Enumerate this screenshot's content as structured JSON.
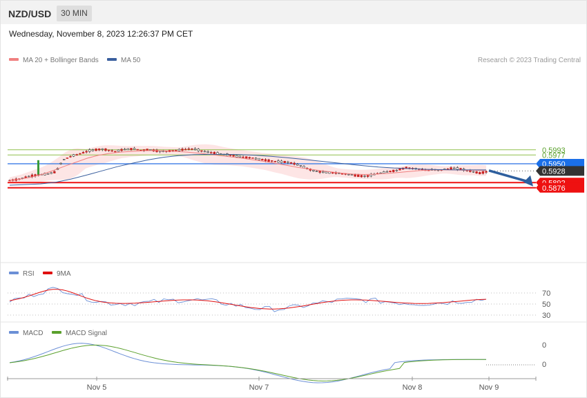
{
  "header": {
    "symbol": "NZD/USD",
    "timeframe": "30 MIN",
    "datetime": "Wednesday, November 8, 2023 12:26:37 PM CET"
  },
  "legend": {
    "ma20": "MA 20 + Bollinger Bands",
    "ma50": "MA 50",
    "copyright": "Research © 2023 Trading Central"
  },
  "colors": {
    "ma20": "#f08080",
    "ma50": "#3a5f9e",
    "bands": "#fde0e0",
    "support": "#ee1111",
    "resistance_blue": "#4a86e8",
    "resistance_green": "#8fbf4a",
    "current": "#333333",
    "up": "#3a9a3a",
    "down": "#cc2222",
    "arrow": "#2e5f9e",
    "rsi": "#6b8fd6",
    "rsi_ma": "#e01010",
    "macd": "#6b8fd6",
    "macd_signal": "#5aa02c"
  },
  "chart_data": {
    "type": "candlestick",
    "timeframe": "30 MIN",
    "x_labels": [
      "Nov 5",
      "Nov 7",
      "Nov 8",
      "Nov 9"
    ],
    "price_levels": [
      {
        "label": "0.5993",
        "value": 0.5993,
        "kind": "resistance-green"
      },
      {
        "label": "0.5977",
        "value": 0.5977,
        "kind": "resistance-green"
      },
      {
        "label": "0.5950",
        "value": 0.595,
        "kind": "resistance-blue"
      },
      {
        "label": "0.5928",
        "value": 0.5928,
        "kind": "current"
      },
      {
        "label": "0.5892",
        "value": 0.5892,
        "kind": "support"
      },
      {
        "label": "0.5876",
        "value": 0.5876,
        "kind": "support"
      }
    ],
    "price_path": [
      0.5899,
      0.5901,
      0.5906,
      0.5912,
      0.5915,
      0.5917,
      0.592,
      0.5925,
      0.5961,
      0.5971,
      0.5978,
      0.5983,
      0.599,
      0.5993,
      0.5995,
      0.5992,
      0.5988,
      0.5993,
      0.5995,
      0.5996,
      0.5991,
      0.5994,
      0.599,
      0.5988,
      0.5989,
      0.5991,
      0.5993,
      0.5996,
      0.5995,
      0.599,
      0.5986,
      0.5983,
      0.598,
      0.5978,
      0.5974,
      0.5971,
      0.5969,
      0.5967,
      0.5963,
      0.596,
      0.5958,
      0.5956,
      0.5955,
      0.595,
      0.5944,
      0.5935,
      0.5928,
      0.5925,
      0.5923,
      0.5922,
      0.592,
      0.5918,
      0.5915,
      0.5912,
      0.5912,
      0.5917,
      0.5921,
      0.5925,
      0.5928,
      0.5933,
      0.5938,
      0.5936,
      0.5934,
      0.593,
      0.5932,
      0.593,
      0.5934,
      0.5936,
      0.5935,
      0.593,
      0.5926,
      0.5921,
      0.5925
    ],
    "ma20": [
      0.5899,
      0.5903,
      0.5909,
      0.5918,
      0.593,
      0.5943,
      0.5955,
      0.5967,
      0.5976,
      0.5982,
      0.5986,
      0.5988,
      0.599,
      0.5991,
      0.599,
      0.5988,
      0.5986,
      0.5983,
      0.5979,
      0.5975,
      0.5971,
      0.5967,
      0.5962,
      0.5957,
      0.5951,
      0.5945,
      0.5939,
      0.5934,
      0.5929,
      0.5925,
      0.5921,
      0.5918,
      0.5917,
      0.5918,
      0.592,
      0.5923,
      0.5926,
      0.5929,
      0.5931,
      0.5931,
      0.5931,
      0.593,
      0.593,
      0.5929
    ],
    "ma50": [
      0.5884,
      0.5886,
      0.5888,
      0.5893,
      0.5903,
      0.5915,
      0.5928,
      0.5941,
      0.5952,
      0.5962,
      0.597,
      0.5975,
      0.5978,
      0.5979,
      0.5979,
      0.5978,
      0.5976,
      0.5973,
      0.5969,
      0.5964,
      0.5959,
      0.5954,
      0.5949,
      0.5944,
      0.594,
      0.5937,
      0.5935,
      0.5933,
      0.5932,
      0.5931,
      0.5931,
      0.5931
    ],
    "projection": {
      "from": 0.5929,
      "to": 0.5876
    },
    "rsi": {
      "label": "RSI",
      "ma_label": "9MA",
      "levels": [
        "70",
        "50",
        "30"
      ]
    },
    "macd": {
      "label": "MACD",
      "signal_label": "MACD Signal",
      "levels": [
        "0",
        "0"
      ]
    }
  }
}
